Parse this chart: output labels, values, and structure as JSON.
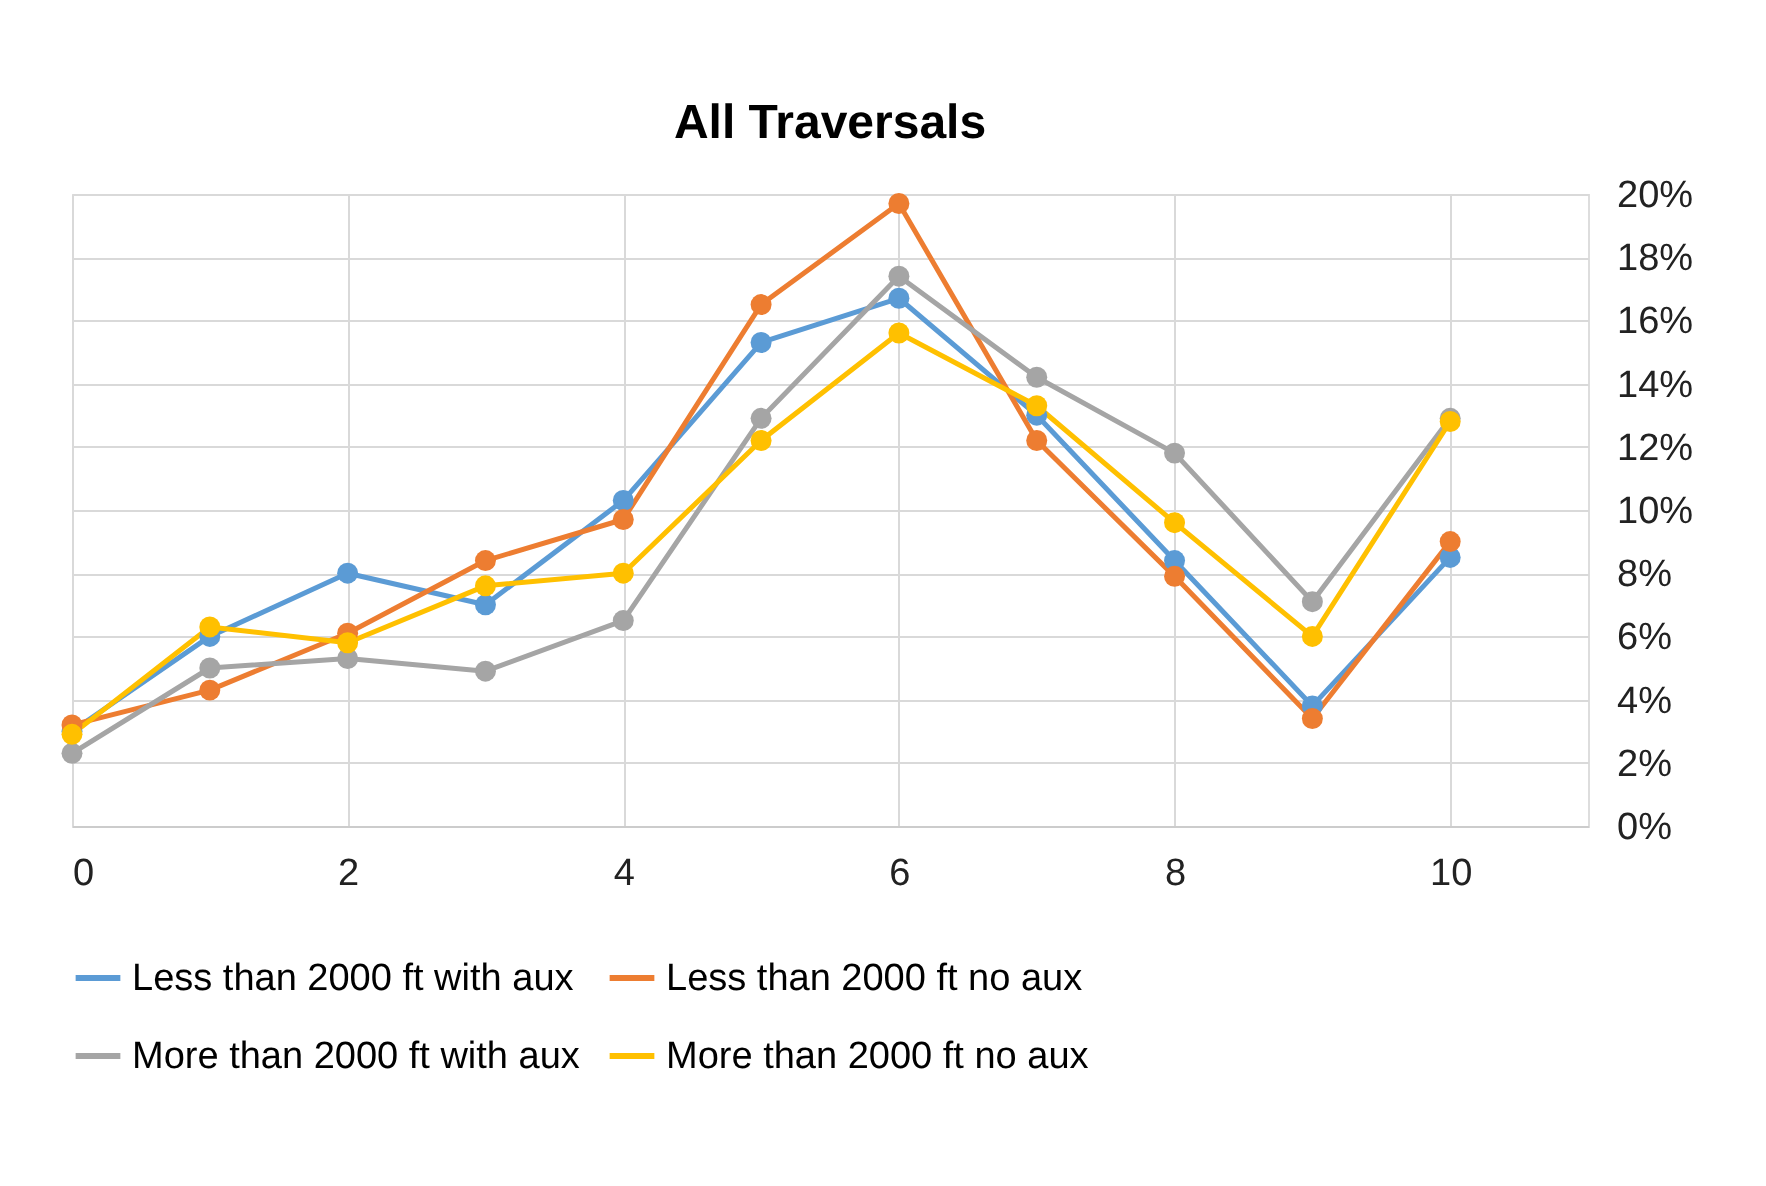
{
  "chart_data": {
    "type": "line",
    "title": "All Traversals",
    "x": [
      0,
      1,
      2,
      3,
      4,
      5,
      6,
      7,
      8,
      9,
      10
    ],
    "xlim": [
      0,
      11
    ],
    "xticks": [
      0,
      2,
      4,
      6,
      8,
      10
    ],
    "ylim": [
      0,
      20
    ],
    "yticks": [
      {
        "value": 0,
        "label": "0%"
      },
      {
        "value": 2,
        "label": "2%"
      },
      {
        "value": 4,
        "label": "4%"
      },
      {
        "value": 6,
        "label": "6%"
      },
      {
        "value": 8,
        "label": "8%"
      },
      {
        "value": 10,
        "label": "10%"
      },
      {
        "value": 12,
        "label": "12%"
      },
      {
        "value": 14,
        "label": "14%"
      },
      {
        "value": 16,
        "label": "16%"
      },
      {
        "value": 18,
        "label": "18%"
      },
      {
        "value": 20,
        "label": "20%"
      }
    ],
    "series": [
      {
        "name": "Less than 2000 ft with aux",
        "color": "#5b9bd5",
        "values": [
          3.0,
          6.0,
          8.0,
          7.0,
          10.3,
          15.3,
          16.7,
          13.0,
          8.4,
          3.8,
          8.5
        ]
      },
      {
        "name": "Less than 2000 ft no aux",
        "color": "#ed7d31",
        "values": [
          3.2,
          4.3,
          6.1,
          8.4,
          9.7,
          16.5,
          19.7,
          12.2,
          7.9,
          3.4,
          9.0
        ]
      },
      {
        "name": "More than 2000 ft with aux",
        "color": "#a5a5a5",
        "values": [
          2.3,
          5.0,
          5.3,
          4.9,
          6.5,
          12.9,
          17.4,
          14.2,
          11.8,
          7.1,
          12.9
        ]
      },
      {
        "name": "More than 2000 ft no aux",
        "color": "#ffc000",
        "values": [
          2.9,
          6.3,
          5.8,
          7.6,
          8.0,
          12.2,
          15.6,
          13.3,
          9.6,
          6.0,
          12.8
        ]
      }
    ],
    "grid": true,
    "legend": "bottom",
    "marker": "circle",
    "line_style": "solid"
  }
}
